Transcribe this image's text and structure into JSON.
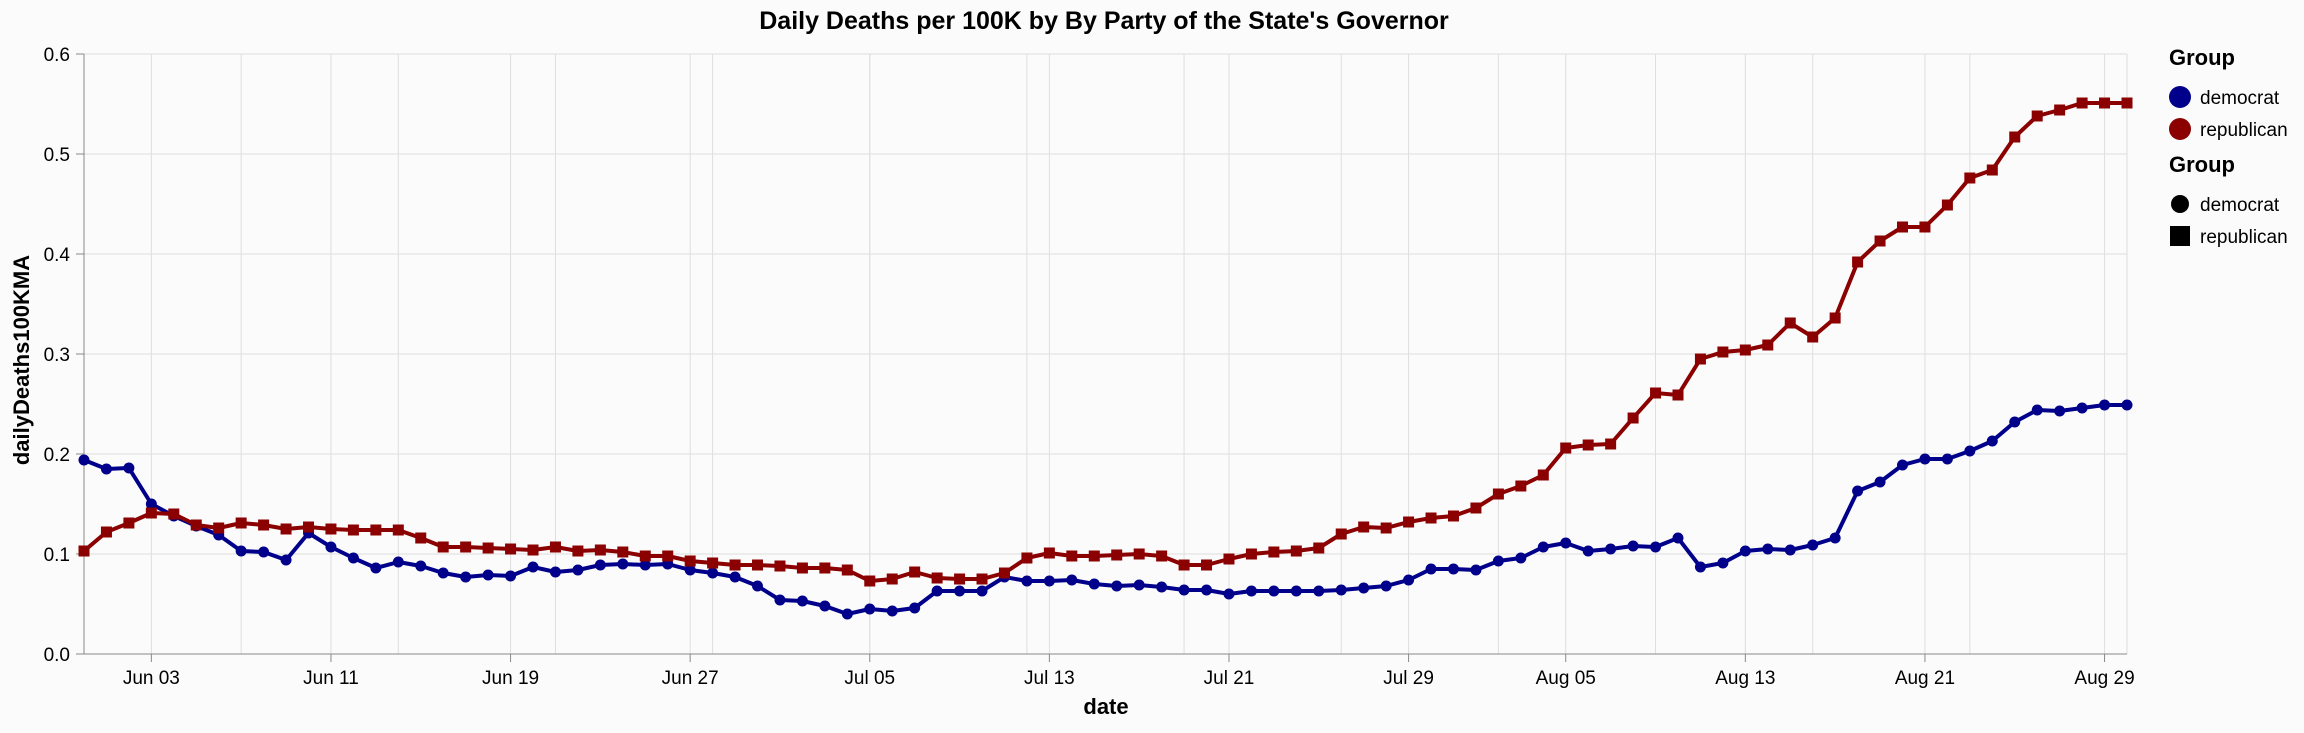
{
  "chart_data": {
    "type": "line",
    "title": "Daily Deaths per 100K by By Party of the State's Governor",
    "xlabel": "date",
    "ylabel": "dailyDeaths100KMA",
    "ylim": [
      0,
      0.6
    ],
    "yticks": [
      "0.0",
      "0.1",
      "0.2",
      "0.3",
      "0.4",
      "0.5",
      "0.6"
    ],
    "xlim": [
      "2020-05-31",
      "2020-08-30"
    ],
    "xticks": [
      {
        "date": "2020-06-03",
        "label": "Jun 03"
      },
      {
        "date": "2020-06-11",
        "label": "Jun 11"
      },
      {
        "date": "2020-06-19",
        "label": "Jun 19"
      },
      {
        "date": "2020-06-27",
        "label": "Jun 27"
      },
      {
        "date": "2020-07-05",
        "label": "Jul 05"
      },
      {
        "date": "2020-07-13",
        "label": "Jul 13"
      },
      {
        "date": "2020-07-21",
        "label": "Jul 21"
      },
      {
        "date": "2020-07-29",
        "label": "Jul 29"
      },
      {
        "date": "2020-08-05",
        "label": "Aug 05"
      },
      {
        "date": "2020-08-13",
        "label": "Aug 13"
      },
      {
        "date": "2020-08-21",
        "label": "Aug 21"
      },
      {
        "date": "2020-08-29",
        "label": "Aug 29"
      }
    ],
    "grid": true,
    "legend_position": "right",
    "legends": [
      {
        "title": "Group",
        "kind": "color",
        "items": [
          {
            "label": "democrat",
            "color": "#00008b",
            "shape": "circle"
          },
          {
            "label": "republican",
            "color": "#8b0000",
            "shape": "circle"
          }
        ]
      },
      {
        "title": "Group",
        "kind": "shape",
        "items": [
          {
            "label": "democrat",
            "color": "#000000",
            "shape": "circle"
          },
          {
            "label": "republican",
            "color": "#000000",
            "shape": "square"
          }
        ]
      }
    ],
    "x_dates": [
      "2020-05-31",
      "2020-06-01",
      "2020-06-02",
      "2020-06-03",
      "2020-06-04",
      "2020-06-05",
      "2020-06-06",
      "2020-06-07",
      "2020-06-08",
      "2020-06-09",
      "2020-06-10",
      "2020-06-11",
      "2020-06-12",
      "2020-06-13",
      "2020-06-14",
      "2020-06-15",
      "2020-06-16",
      "2020-06-17",
      "2020-06-18",
      "2020-06-19",
      "2020-06-20",
      "2020-06-21",
      "2020-06-22",
      "2020-06-23",
      "2020-06-24",
      "2020-06-25",
      "2020-06-26",
      "2020-06-27",
      "2020-06-28",
      "2020-06-29",
      "2020-06-30",
      "2020-07-01",
      "2020-07-02",
      "2020-07-03",
      "2020-07-04",
      "2020-07-05",
      "2020-07-06",
      "2020-07-07",
      "2020-07-08",
      "2020-07-09",
      "2020-07-10",
      "2020-07-11",
      "2020-07-12",
      "2020-07-13",
      "2020-07-14",
      "2020-07-15",
      "2020-07-16",
      "2020-07-17",
      "2020-07-18",
      "2020-07-19",
      "2020-07-20",
      "2020-07-21",
      "2020-07-22",
      "2020-07-23",
      "2020-07-24",
      "2020-07-25",
      "2020-07-26",
      "2020-07-27",
      "2020-07-28",
      "2020-07-29",
      "2020-07-30",
      "2020-07-31",
      "2020-08-01",
      "2020-08-02",
      "2020-08-03",
      "2020-08-04",
      "2020-08-05",
      "2020-08-06",
      "2020-08-07",
      "2020-08-08",
      "2020-08-09",
      "2020-08-10",
      "2020-08-11",
      "2020-08-12",
      "2020-08-13",
      "2020-08-14",
      "2020-08-15",
      "2020-08-16",
      "2020-08-17",
      "2020-08-18",
      "2020-08-19",
      "2020-08-20",
      "2020-08-21",
      "2020-08-22",
      "2020-08-23",
      "2020-08-24",
      "2020-08-25",
      "2020-08-26",
      "2020-08-27",
      "2020-08-28",
      "2020-08-29",
      "2020-08-30"
    ],
    "series": [
      {
        "name": "democrat",
        "color": "#00008b",
        "shape": "circle",
        "values": [
          0.194,
          0.185,
          0.186,
          0.15,
          0.138,
          0.128,
          0.119,
          0.103,
          0.102,
          0.094,
          0.121,
          0.107,
          0.096,
          0.086,
          0.092,
          0.088,
          0.081,
          0.077,
          0.079,
          0.078,
          0.087,
          0.082,
          0.084,
          0.089,
          0.09,
          0.089,
          0.09,
          0.084,
          0.081,
          0.077,
          0.068,
          0.054,
          0.053,
          0.048,
          0.04,
          0.045,
          0.043,
          0.046,
          0.063,
          0.063,
          0.063,
          0.077,
          0.073,
          0.073,
          0.074,
          0.07,
          0.068,
          0.069,
          0.067,
          0.064,
          0.064,
          0.06,
          0.063,
          0.063,
          0.063,
          0.063,
          0.064,
          0.066,
          0.068,
          0.074,
          0.085,
          0.085,
          0.084,
          0.093,
          0.096,
          0.107,
          0.111,
          0.103,
          0.105,
          0.108,
          0.107,
          0.116,
          0.087,
          0.091,
          0.103,
          0.105,
          0.104,
          0.109,
          0.116,
          0.163,
          0.172,
          0.189,
          0.195,
          0.195,
          0.203,
          0.213,
          0.232,
          0.244,
          0.243,
          0.246,
          0.249,
          0.249
        ]
      },
      {
        "name": "republican",
        "color": "#8b0000",
        "shape": "square",
        "values": [
          0.103,
          0.122,
          0.131,
          0.141,
          0.14,
          0.129,
          0.126,
          0.131,
          0.129,
          0.125,
          0.127,
          0.125,
          0.124,
          0.124,
          0.124,
          0.116,
          0.107,
          0.107,
          0.106,
          0.105,
          0.104,
          0.107,
          0.103,
          0.104,
          0.102,
          0.098,
          0.098,
          0.093,
          0.091,
          0.089,
          0.089,
          0.088,
          0.086,
          0.086,
          0.084,
          0.073,
          0.075,
          0.082,
          0.076,
          0.075,
          0.075,
          0.081,
          0.096,
          0.101,
          0.098,
          0.098,
          0.099,
          0.1,
          0.098,
          0.089,
          0.089,
          0.095,
          0.1,
          0.102,
          0.103,
          0.106,
          0.12,
          0.127,
          0.126,
          0.132,
          0.136,
          0.138,
          0.146,
          0.16,
          0.168,
          0.179,
          0.206,
          0.209,
          0.21,
          0.236,
          0.261,
          0.259,
          0.295,
          0.302,
          0.304,
          0.309,
          0.331,
          0.317,
          0.336,
          0.392,
          0.413,
          0.427,
          0.427,
          0.449,
          0.476,
          0.484,
          0.517,
          0.538,
          0.544,
          0.551,
          0.551,
          0.551
        ]
      }
    ]
  }
}
